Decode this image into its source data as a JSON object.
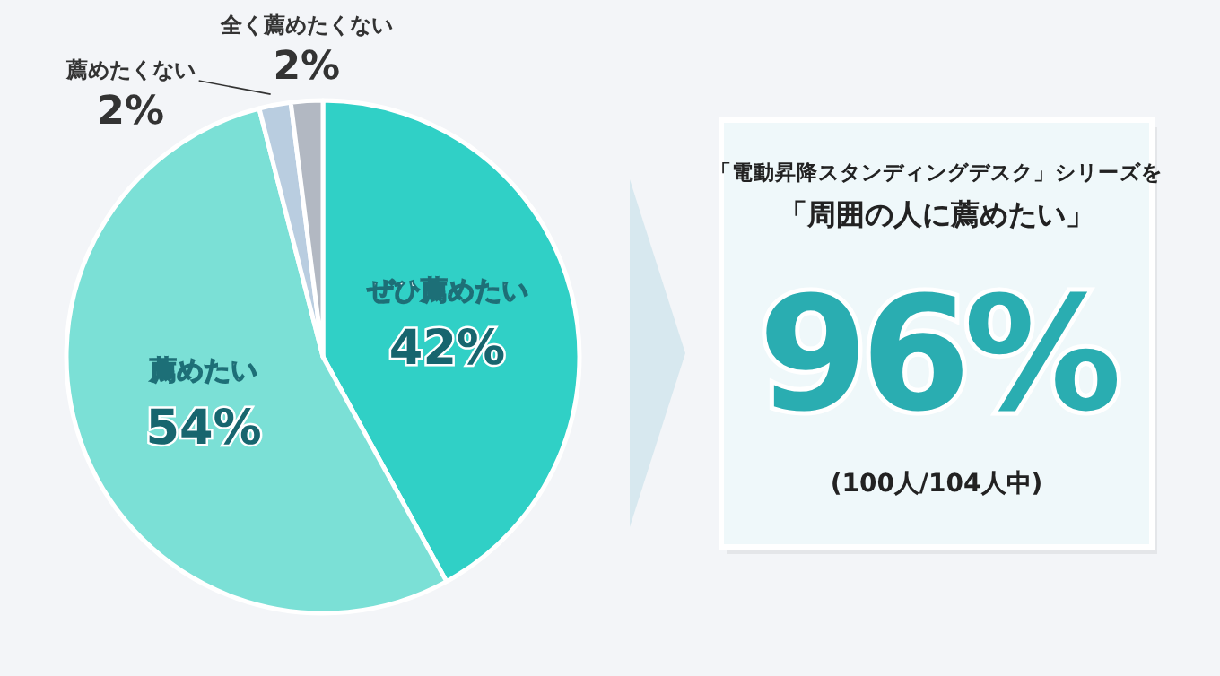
{
  "chart_data": [
    {
      "type": "pie",
      "categories": [
        "ぜひ薦めたい",
        "薦めたい",
        "薦めたくない",
        "全く薦めたくない"
      ],
      "values": [
        42,
        54,
        2,
        2
      ],
      "colors": [
        "#30d0c6",
        "#7be0d6",
        "#b9cde0",
        "#b2b8c2"
      ],
      "value_labels": [
        "42%",
        "54%",
        "2%",
        "2%"
      ]
    },
    {
      "type": "other",
      "annotations": [
        "「電動昇降スタンディングデスク」シリーズを",
        "「周囲の人に薦めたい」",
        "96%",
        "(100人/104人中)"
      ]
    }
  ]
}
